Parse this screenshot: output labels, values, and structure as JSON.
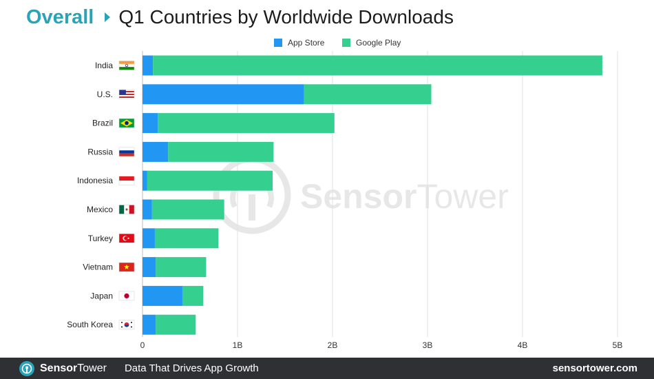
{
  "header": {
    "section": "Overall",
    "title": "Q1 Countries by Worldwide Downloads"
  },
  "watermark": {
    "part1": "Sensor",
    "part2": "Tower"
  },
  "footer": {
    "brand_part1": "Sensor",
    "brand_part2": "Tower",
    "tagline": "Data That Drives App Growth",
    "url": "sensortower.com"
  },
  "colors": {
    "app_store": "#2196f3",
    "google_play": "#35d08f",
    "accent": "#2aa3b8",
    "grid": "#dcdcdc",
    "footer_bg": "#2f3033"
  },
  "chart_data": {
    "type": "bar",
    "orientation": "horizontal",
    "stacked": true,
    "categories": [
      "India",
      "U.S.",
      "Brazil",
      "Russia",
      "Indonesia",
      "Mexico",
      "Turkey",
      "Vietnam",
      "Japan",
      "South Korea"
    ],
    "flags": [
      "India flag",
      "U.S. flag",
      "Brazil flag",
      "Russia flag",
      "Indonesia flag",
      "Mexico flag",
      "Turkey flag",
      "Vietnam flag",
      "Japan flag",
      "South Korea flag"
    ],
    "series": [
      {
        "name": "App Store",
        "color": "#2196f3",
        "values": [
          0.11,
          1.7,
          0.16,
          0.27,
          0.05,
          0.1,
          0.13,
          0.14,
          0.42,
          0.14
        ]
      },
      {
        "name": "Google Play",
        "color": "#35d08f",
        "values": [
          4.73,
          1.34,
          1.86,
          1.11,
          1.32,
          0.76,
          0.67,
          0.53,
          0.22,
          0.42
        ]
      }
    ],
    "x_ticks": [
      0,
      1,
      2,
      3,
      4,
      5
    ],
    "x_tick_labels": [
      "0",
      "1B",
      "2B",
      "3B",
      "4B",
      "5B"
    ],
    "xlim": [
      0,
      5
    ],
    "unit": "billion downloads",
    "grid": true,
    "legend_position": "top-center"
  }
}
